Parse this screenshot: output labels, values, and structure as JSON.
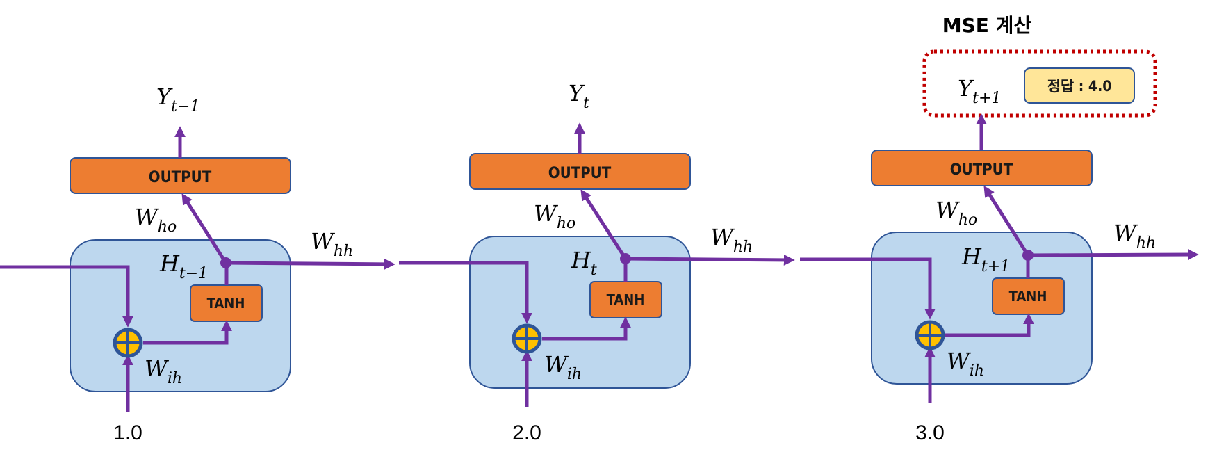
{
  "header": {
    "title": "MSE 계산"
  },
  "answer_box": {
    "text": "정답 : 4.0"
  },
  "colors": {
    "cell_fill": "#bdd7ee",
    "box_orange": "#ed7d31",
    "wire_purple": "#7030a0",
    "sum_node_fill": "#ffc000",
    "sum_node_stroke": "#2f5597",
    "dotted_border": "#c00000",
    "answer_fill": "#ffe699"
  },
  "cells": [
    {
      "output_label": "OUTPUT",
      "tanh_label": "TANH",
      "y_base": "Y",
      "y_sub": "t−1",
      "h_base": "H",
      "h_sub": "t−1",
      "w_ho_base": "W",
      "w_ho_sub": "ho",
      "w_hh_base": "W",
      "w_hh_sub": "hh",
      "w_ih_base": "W",
      "w_ih_sub": "ih",
      "input": "1.0"
    },
    {
      "output_label": "OUTPUT",
      "tanh_label": "TANH",
      "y_base": "Y",
      "y_sub": "t",
      "h_base": "H",
      "h_sub": "t",
      "w_ho_base": "W",
      "w_ho_sub": "ho",
      "w_hh_base": "W",
      "w_hh_sub": "hh",
      "w_ih_base": "W",
      "w_ih_sub": "ih",
      "input": "2.0"
    },
    {
      "output_label": "OUTPUT",
      "tanh_label": "TANH",
      "y_base": "Y",
      "y_sub": "t+1",
      "h_base": "H",
      "h_sub": "t+1",
      "w_ho_base": "W",
      "w_ho_sub": "ho",
      "w_hh_base": "W",
      "w_hh_sub": "hh",
      "w_ih_base": "W",
      "w_ih_sub": "ih",
      "input": "3.0"
    }
  ]
}
